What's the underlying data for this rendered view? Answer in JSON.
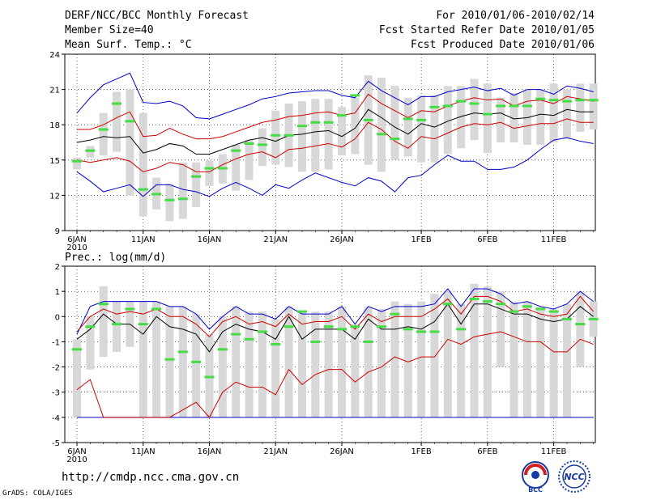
{
  "header": {
    "title": "DERF/NCC/BCC Monthly Forecast",
    "member_size": "Member Size=40",
    "variable1": "Mean Surf. Temp.: °C",
    "period": "For 2010/01/06-2010/02/14",
    "fcst_started": "Fcst Started Refer Date 2010/01/05",
    "fcst_produced": "Fcst Produced Date 2010/01/06"
  },
  "variable2": "Prec.: log(mm/d)",
  "footer": {
    "url": "http://cmdp.ncc.cma.gov.cn",
    "credit": "GrADS: COLA/IGES",
    "logo1_text": "BCC",
    "logo2_text": "NCC"
  },
  "colors": {
    "envelope": "#0000cc",
    "spread": "#cc0000",
    "mean": "#000000",
    "box": "#d8d8d8",
    "median": "#44dd44"
  },
  "chart_data": [
    {
      "type": "box",
      "title": "Mean Surf. Temp.: °C",
      "ylim": [
        9,
        24
      ],
      "yticks": [
        9,
        12,
        15,
        18,
        21,
        24
      ],
      "xticks": [
        {
          "day": 0,
          "label": "6JAN",
          "sub": "2010"
        },
        {
          "day": 5,
          "label": "11JAN"
        },
        {
          "day": 10,
          "label": "16JAN"
        },
        {
          "day": 15,
          "label": "21JAN"
        },
        {
          "day": 20,
          "label": "26JAN"
        },
        {
          "day": 26,
          "label": "1FEB"
        },
        {
          "day": 31,
          "label": "6FEB"
        },
        {
          "day": 36,
          "label": "11FEB"
        }
      ],
      "days": 40,
      "max": [
        19.0,
        20.3,
        21.4,
        21.9,
        22.4,
        19.9,
        19.8,
        20.0,
        19.6,
        18.6,
        18.5,
        18.9,
        19.3,
        19.7,
        20.2,
        20.4,
        20.7,
        20.8,
        20.9,
        20.9,
        20.5,
        20.3,
        21.7,
        20.9,
        20.3,
        19.7,
        20.4,
        20.4,
        20.8,
        21.0,
        21.2,
        20.9,
        21.1,
        20.5,
        21.0,
        21.0,
        20.6,
        21.3,
        21.1,
        20.8
      ],
      "upper": [
        17.6,
        17.6,
        18.0,
        18.6,
        19.1,
        17.0,
        17.1,
        17.7,
        17.2,
        16.8,
        16.8,
        17.0,
        17.4,
        17.8,
        18.2,
        18.4,
        18.7,
        18.8,
        19.0,
        19.1,
        18.8,
        19.0,
        20.6,
        19.8,
        19.2,
        18.6,
        19.2,
        19.1,
        19.6,
        20.0,
        20.3,
        20.1,
        20.2,
        19.6,
        20.0,
        20.1,
        19.8,
        20.4,
        20.2,
        20.0
      ],
      "mean": [
        16.5,
        16.7,
        17.0,
        16.9,
        17.0,
        15.6,
        15.9,
        16.4,
        16.2,
        15.5,
        15.5,
        15.9,
        16.3,
        16.7,
        16.9,
        16.6,
        17.1,
        17.2,
        17.4,
        17.5,
        17.0,
        17.7,
        19.3,
        18.6,
        17.8,
        17.2,
        18.1,
        17.8,
        18.3,
        18.7,
        19.0,
        18.9,
        19.0,
        18.5,
        18.6,
        18.9,
        18.8,
        19.3,
        19.1,
        19.1
      ],
      "lower": [
        15.0,
        14.8,
        15.0,
        15.2,
        14.9,
        14.0,
        14.3,
        14.8,
        14.6,
        14.0,
        14.0,
        14.6,
        15.1,
        15.5,
        15.7,
        15.2,
        15.9,
        16.0,
        16.2,
        16.4,
        16.1,
        16.8,
        18.2,
        17.6,
        16.6,
        16.0,
        17.0,
        16.8,
        17.3,
        17.8,
        18.1,
        18.0,
        18.2,
        17.7,
        17.9,
        18.1,
        18.1,
        18.5,
        18.2,
        18.2
      ],
      "min": [
        14.0,
        13.2,
        12.3,
        12.6,
        12.9,
        11.9,
        12.9,
        12.9,
        12.5,
        12.3,
        11.9,
        12.6,
        13.1,
        12.6,
        12.0,
        12.9,
        12.6,
        13.3,
        13.9,
        13.5,
        13.1,
        12.8,
        13.5,
        13.2,
        12.3,
        13.5,
        13.7,
        14.6,
        15.4,
        14.9,
        14.9,
        14.2,
        14.2,
        14.4,
        15.0,
        15.9,
        16.7,
        16.9,
        16.6,
        16.4
      ],
      "box_low": [
        14.2,
        15.2,
        15.4,
        15.7,
        12.0,
        10.2,
        10.8,
        9.8,
        10.0,
        11.0,
        12.8,
        13.0,
        12.4,
        13.3,
        14.5,
        14.6,
        14.4,
        14.0,
        14.0,
        14.2,
        15.4,
        15.5,
        14.6,
        14.0,
        15.0,
        15.3,
        14.8,
        14.8,
        15.5,
        16.0,
        16.7,
        15.6,
        16.5,
        16.5,
        16.3,
        16.3,
        16.5,
        16.8,
        17.4,
        17.6
      ],
      "box_high": [
        15.2,
        16.2,
        19.0,
        20.8,
        21.0,
        19.0,
        13.5,
        13.0,
        14.8,
        14.8,
        15.0,
        15.5,
        16.3,
        16.7,
        17.7,
        19.2,
        19.8,
        20.0,
        20.2,
        20.2,
        19.5,
        20.3,
        22.2,
        22.0,
        21.3,
        20.3,
        20.5,
        20.5,
        21.3,
        21.3,
        21.9,
        21.5,
        20.3,
        20.7,
        21.0,
        21.0,
        21.5,
        21.0,
        21.5,
        21.5
      ],
      "median": [
        14.9,
        15.8,
        17.6,
        19.8,
        18.3,
        12.5,
        12.1,
        11.6,
        11.7,
        13.6,
        14.3,
        14.3,
        15.8,
        16.4,
        16.3,
        17.1,
        17.1,
        17.9,
        18.2,
        18.2,
        18.8,
        20.5,
        18.4,
        17.2,
        16.8,
        18.5,
        18.4,
        19.5,
        19.6,
        20.0,
        19.8,
        18.9,
        19.6,
        19.6,
        19.6,
        20.2,
        20.1,
        20.0,
        20.1,
        20.1
      ]
    },
    {
      "type": "box",
      "title": "Prec.: log(mm/d)",
      "ylim": [
        -5,
        2
      ],
      "yticks": [
        -5,
        -4,
        -3,
        -2,
        -1,
        0,
        1,
        2
      ],
      "xticks": [
        {
          "day": 0,
          "label": "6JAN",
          "sub": "2010"
        },
        {
          "day": 5,
          "label": "11JAN"
        },
        {
          "day": 10,
          "label": "16JAN"
        },
        {
          "day": 15,
          "label": "21JAN"
        },
        {
          "day": 20,
          "label": "26JAN"
        },
        {
          "day": 26,
          "label": "1FEB"
        },
        {
          "day": 31,
          "label": "6FEB"
        },
        {
          "day": 36,
          "label": "11FEB"
        }
      ],
      "days": 40,
      "max": [
        -0.7,
        0.4,
        0.6,
        0.6,
        0.6,
        0.6,
        0.6,
        0.4,
        0.4,
        0.1,
        -0.5,
        0.0,
        0.4,
        0.1,
        0.1,
        -0.1,
        0.4,
        0.1,
        0.1,
        0.1,
        0.4,
        -0.3,
        0.4,
        0.2,
        0.4,
        0.4,
        0.4,
        0.5,
        1.1,
        0.4,
        1.1,
        1.1,
        0.9,
        0.5,
        0.6,
        0.4,
        0.3,
        0.5,
        1.0,
        0.6
      ],
      "upper": [
        -0.6,
        0.0,
        0.3,
        0.1,
        0.2,
        0.1,
        0.3,
        0.0,
        0.0,
        -0.3,
        -0.8,
        -0.2,
        0.0,
        -0.3,
        -0.2,
        -0.4,
        0.1,
        -0.3,
        -0.2,
        -0.2,
        0.0,
        -0.5,
        0.1,
        -0.2,
        0.0,
        0.0,
        0.0,
        0.3,
        0.7,
        0.1,
        0.8,
        0.8,
        0.6,
        0.2,
        0.3,
        0.1,
        0.0,
        0.1,
        0.8,
        0.2
      ],
      "mean": [
        -0.9,
        -0.5,
        0.1,
        -0.3,
        -0.3,
        -0.7,
        0.0,
        -0.4,
        -0.5,
        -0.7,
        -1.4,
        -0.6,
        -0.3,
        -0.5,
        -0.6,
        -0.9,
        0.0,
        -0.9,
        -0.5,
        -0.5,
        -0.5,
        -0.9,
        -0.1,
        -0.5,
        -0.5,
        -0.4,
        -0.5,
        -0.2,
        0.5,
        -0.3,
        0.5,
        0.5,
        0.3,
        0.1,
        0.1,
        -0.1,
        -0.2,
        -0.1,
        0.4,
        0.0
      ],
      "lower": [
        -2.9,
        -2.5,
        -4.0,
        -4.0,
        -4.0,
        -4.0,
        -4.0,
        -4.0,
        -3.7,
        -3.4,
        -4.0,
        -3.0,
        -2.6,
        -2.8,
        -2.8,
        -3.1,
        -2.1,
        -2.7,
        -2.3,
        -2.1,
        -2.1,
        -2.6,
        -2.2,
        -2.0,
        -1.6,
        -1.8,
        -1.6,
        -1.6,
        -0.9,
        -1.1,
        -0.8,
        -0.7,
        -0.6,
        -0.8,
        -1.0,
        -1.0,
        -1.4,
        -1.4,
        -0.9,
        -1.1
      ],
      "min": [
        -4.0,
        -4.0,
        -4.0,
        -4.0,
        -4.0,
        -4.0,
        -4.0,
        -4.0,
        -4.0,
        -4.0,
        -4.0,
        -4.0,
        -4.0,
        -4.0,
        -4.0,
        -4.0,
        -4.0,
        -4.0,
        -4.0,
        -4.0,
        -4.0,
        -4.0,
        -4.0,
        -4.0,
        -4.0,
        -4.0,
        -4.0,
        -4.0,
        -4.0,
        -4.0,
        -4.0,
        -4.0,
        -4.0,
        -4.0,
        -4.0,
        -4.0,
        -4.0,
        -4.0,
        -4.0,
        -4.0
      ],
      "box_low": [
        -4.0,
        -2.1,
        -1.6,
        -1.4,
        -1.2,
        -4.0,
        -4.0,
        -4.0,
        -4.0,
        -4.0,
        -4.0,
        -4.0,
        -4.0,
        -4.0,
        -4.0,
        -4.0,
        -4.0,
        -4.0,
        -4.0,
        -4.0,
        -4.0,
        -4.0,
        -4.0,
        -4.0,
        -4.0,
        -4.0,
        -4.0,
        -4.0,
        -4.0,
        -4.0,
        -4.0,
        -4.0,
        -2.0,
        -4.0,
        -4.0,
        -4.0,
        -4.0,
        -4.0,
        -2.0,
        -0.8
      ],
      "box_high": [
        -0.9,
        0.0,
        1.2,
        0.6,
        0.6,
        0.6,
        0.6,
        0.4,
        0.4,
        0.1,
        -0.7,
        0.0,
        0.4,
        0.2,
        0.2,
        -0.1,
        0.4,
        0.2,
        0.2,
        0.2,
        0.4,
        -0.3,
        0.4,
        0.3,
        0.6,
        0.5,
        0.6,
        0.9,
        1.0,
        0.5,
        1.3,
        1.2,
        1.0,
        0.6,
        0.6,
        0.4,
        0.3,
        0.5,
        1.0,
        0.6
      ],
      "median": [
        -1.3,
        -0.4,
        0.5,
        -0.3,
        0.3,
        -0.3,
        0.3,
        -1.7,
        -1.4,
        -1.8,
        -2.4,
        -1.3,
        -0.7,
        -0.9,
        -0.6,
        -1.1,
        -0.4,
        0.2,
        -1.0,
        -0.4,
        -0.5,
        -0.4,
        -1.0,
        -0.4,
        0.1,
        -0.5,
        -0.6,
        -0.6,
        0.5,
        -0.5,
        0.7,
        0.6,
        0.5,
        0.2,
        0.4,
        0.3,
        0.2,
        -0.1,
        -0.3,
        -0.1
      ]
    }
  ]
}
